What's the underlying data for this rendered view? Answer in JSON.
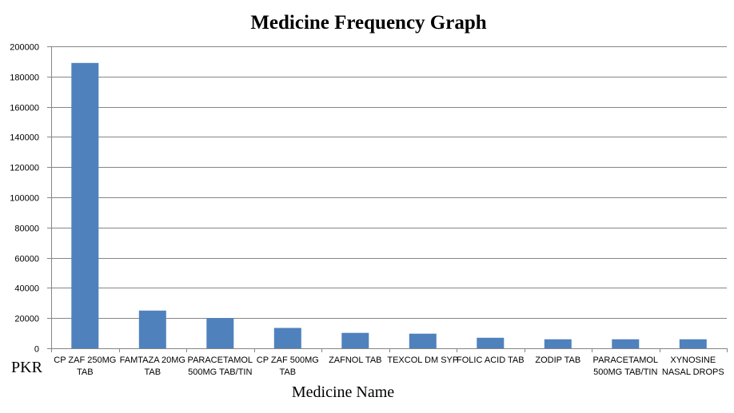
{
  "chart_data": {
    "type": "bar",
    "title": "Medicine Frequency Graph",
    "xlabel": "Medicine Name",
    "ylabel": "PKR",
    "categories": [
      [
        "CP ZAF 250MG",
        "TAB"
      ],
      [
        "FAMTAZA 20MG",
        "TAB"
      ],
      [
        "PARACETAMOL",
        "500MG TAB/TIN"
      ],
      [
        "CP ZAF 500MG",
        "TAB"
      ],
      [
        "ZAFNOL TAB"
      ],
      [
        "TEXCOL DM SYP"
      ],
      [
        "FOLIC ACID TAB"
      ],
      [
        "ZODIP TAB"
      ],
      [
        "PARACETAMOL",
        "500MG TAB/TIN"
      ],
      [
        "XYNOSINE",
        "NASAL DROPS"
      ]
    ],
    "values": [
      189000,
      25000,
      20000,
      13500,
      10200,
      9700,
      7000,
      6000,
      6000,
      6000
    ],
    "ylim": [
      0,
      200000
    ],
    "yticks": [
      "0",
      "20000",
      "40000",
      "60000",
      "80000",
      "100000",
      "120000",
      "140000",
      "160000",
      "180000",
      "200000"
    ],
    "grid": true,
    "legend": "none",
    "bar_color": "#4F81BD",
    "grid_color": "#868686"
  }
}
